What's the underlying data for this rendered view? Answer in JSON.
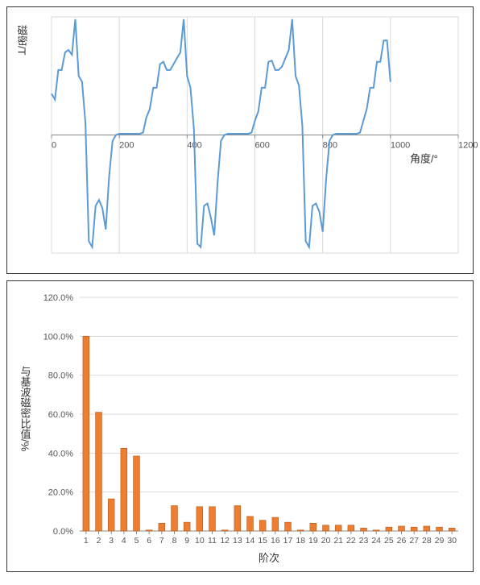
{
  "line_chart": {
    "type": "line",
    "ylabel": "磁密/T",
    "xlabel": "角度/°",
    "x_values": [
      0,
      10,
      20,
      30,
      40,
      50,
      60,
      70,
      80,
      90,
      100,
      110,
      120,
      130,
      140,
      150,
      160,
      170,
      180,
      190,
      200,
      210,
      220,
      230,
      240,
      250,
      260,
      270,
      280,
      290,
      300,
      310,
      320,
      330,
      340,
      350,
      360,
      370,
      380,
      390,
      400,
      410,
      420,
      430,
      440,
      450,
      460,
      470,
      480,
      490,
      500,
      510,
      520,
      530,
      540,
      550,
      560,
      570,
      580,
      590,
      600,
      610,
      620,
      630,
      640,
      650,
      660,
      670,
      680,
      690,
      700,
      710,
      720,
      730,
      740,
      750,
      760,
      770,
      780,
      790,
      800,
      810,
      820,
      830,
      840,
      850,
      860,
      870,
      880,
      890,
      900,
      910,
      920,
      930,
      940,
      950,
      960,
      970,
      980,
      990,
      1000
    ],
    "y_values": [
      0.35,
      0.3,
      0.55,
      0.55,
      0.7,
      0.72,
      0.68,
      0.98,
      0.5,
      0.45,
      0.1,
      -0.9,
      -0.95,
      -0.6,
      -0.55,
      -0.62,
      -0.8,
      -0.35,
      -0.05,
      0.0,
      0.01,
      0.01,
      0.01,
      0.01,
      0.01,
      0.01,
      0.01,
      0.02,
      0.15,
      0.22,
      0.4,
      0.4,
      0.6,
      0.62,
      0.55,
      0.55,
      0.6,
      0.65,
      0.7,
      0.98,
      0.5,
      0.4,
      0.05,
      -0.92,
      -0.95,
      -0.6,
      -0.58,
      -0.7,
      -0.85,
      -0.4,
      -0.05,
      0.0,
      0.01,
      0.01,
      0.01,
      0.01,
      0.01,
      0.01,
      0.01,
      0.02,
      0.12,
      0.2,
      0.4,
      0.4,
      0.62,
      0.63,
      0.55,
      0.55,
      0.58,
      0.65,
      0.72,
      0.98,
      0.5,
      0.42,
      0.08,
      -0.9,
      -0.95,
      -0.6,
      -0.58,
      -0.65,
      -0.82,
      -0.38,
      -0.05,
      0.0,
      0.01,
      0.01,
      0.01,
      0.01,
      0.01,
      0.01,
      0.01,
      0.02,
      0.12,
      0.22,
      0.4,
      0.4,
      0.62,
      0.62,
      0.8,
      0.8,
      0.45
    ],
    "xlim": [
      0,
      1200
    ],
    "ylim": [
      -1.0,
      1.0
    ],
    "x_ticks": [
      0,
      200,
      400,
      600,
      800,
      1000,
      1200
    ],
    "line_color": "#5b9bd5",
    "line_width": 2,
    "grid_color": "#d9d9d9",
    "axis_color": "#888888",
    "tick_fontsize": 11,
    "label_fontsize": 13,
    "background_color": "#ffffff"
  },
  "bar_chart": {
    "type": "bar",
    "ylabel": "与基波磁密比值/%",
    "xlabel": "阶次",
    "categories": [
      1,
      2,
      3,
      4,
      5,
      6,
      7,
      8,
      9,
      10,
      11,
      12,
      13,
      14,
      15,
      16,
      17,
      18,
      19,
      20,
      21,
      22,
      23,
      24,
      25,
      26,
      27,
      28,
      29,
      30
    ],
    "values": [
      100.0,
      61.0,
      16.5,
      42.5,
      38.5,
      0.5,
      4.0,
      13.0,
      4.5,
      12.5,
      12.5,
      0.5,
      13.0,
      7.5,
      5.5,
      7.0,
      4.5,
      0.5,
      4.0,
      3.0,
      3.0,
      3.0,
      1.5,
      0.5,
      2.0,
      2.5,
      2.0,
      2.5,
      2.0,
      1.5
    ],
    "ylim": [
      0,
      120
    ],
    "y_ticks": [
      0,
      20,
      40,
      60,
      80,
      100,
      120
    ],
    "y_tick_labels": [
      "0.0%",
      "20.0%",
      "40.0%",
      "60.0%",
      "80.0%",
      "100.0%",
      "120.0%"
    ],
    "bar_color": "#ed7d31",
    "bar_border": "#b35818",
    "bar_width": 0.5,
    "grid_color": "#d9d9d9",
    "axis_color": "#888888",
    "tick_fontsize": 11,
    "label_fontsize": 13,
    "background_color": "#ffffff"
  }
}
